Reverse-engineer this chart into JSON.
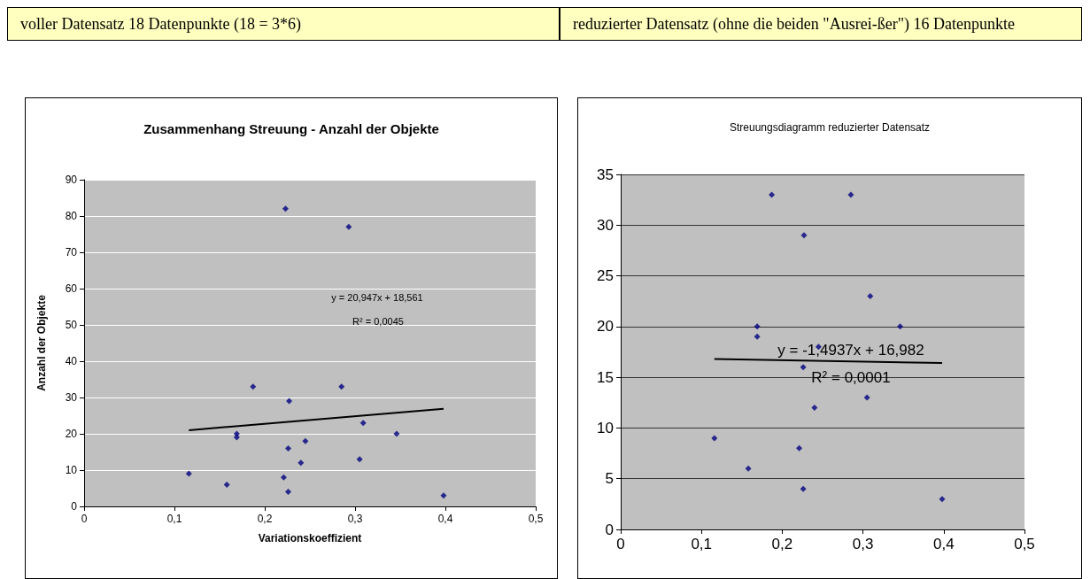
{
  "chart_data": [
    {
      "type": "scatter",
      "title": "Zusammenhang Streuung - Anzahl der Objekte",
      "subtitle": "voller Datensatz 18 Datenpunkte (18 = 3*6)",
      "xlabel": "Variationskoeffizient",
      "ylabel": "Anzahl der Objekte",
      "series": [
        {
          "marker": "diamond",
          "color": "#000080",
          "x": [
            0.116,
            0.158,
            0.169,
            0.169,
            0.187,
            0.223,
            0.221,
            0.226,
            0.226,
            0.227,
            0.24,
            0.245,
            0.285,
            0.293,
            0.305,
            0.309,
            0.346,
            0.398
          ],
          "values": [
            9,
            6,
            20,
            19,
            33,
            82,
            8,
            16,
            4,
            29,
            12,
            18,
            33,
            77,
            13,
            23,
            20,
            3
          ]
        },
        {
          "type": "line",
          "marker": "none",
          "color": "#000000",
          "x": [
            0.116,
            0.398
          ],
          "values": [
            21.0,
            26.9
          ]
        }
      ],
      "annotations": [
        "y = 20,947x + 18,561",
        "R² = 0,0045"
      ],
      "xlim": [
        0,
        0.5
      ],
      "xticks": [
        0,
        {
          "value": 0.1,
          "label": "0,1"
        },
        {
          "value": 0.2,
          "label": "0,2"
        },
        {
          "value": 0.3,
          "label": "0,3"
        },
        {
          "value": 0.4,
          "label": "0,4"
        },
        {
          "value": 0.5,
          "label": "0,5"
        }
      ],
      "ylim": [
        0,
        90
      ],
      "yticks": [
        0,
        10,
        20,
        30,
        40,
        50,
        60,
        70,
        80,
        90
      ],
      "grid": "y"
    },
    {
      "type": "scatter",
      "title": "Streuungsdiagramm reduzierter Datensatz",
      "subtitle": "reduzierter Datensatz (ohne die beiden \"Ausrei-ßer\") 16 Datenpunkte",
      "series": [
        {
          "marker": "diamond",
          "color": "#000080",
          "x": [
            0.116,
            0.158,
            0.169,
            0.169,
            0.187,
            0.221,
            0.226,
            0.226,
            0.227,
            0.24,
            0.245,
            0.285,
            0.305,
            0.309,
            0.346,
            0.398
          ],
          "values": [
            9,
            6,
            20,
            19,
            33,
            8,
            16,
            4,
            29,
            12,
            18,
            33,
            13,
            23,
            20,
            3
          ]
        },
        {
          "type": "line",
          "marker": "none",
          "color": "#000000",
          "x": [
            0.116,
            0.398
          ],
          "values": [
            16.8,
            16.4
          ]
        }
      ],
      "annotations": [
        "y = -1,4937x + 16,982",
        "R² = 0,0001"
      ],
      "xlim": [
        0,
        0.5
      ],
      "xticks": [
        0,
        {
          "value": 0.1,
          "label": "0,1"
        },
        {
          "value": 0.2,
          "label": "0,2"
        },
        {
          "value": 0.3,
          "label": "0,3"
        },
        {
          "value": 0.4,
          "label": "0,4"
        },
        {
          "value": 0.5,
          "label": "0,5"
        }
      ],
      "ylim": [
        0,
        35
      ],
      "yticks": [
        0,
        5,
        10,
        15,
        20,
        25,
        30,
        35
      ],
      "grid": "y"
    }
  ]
}
